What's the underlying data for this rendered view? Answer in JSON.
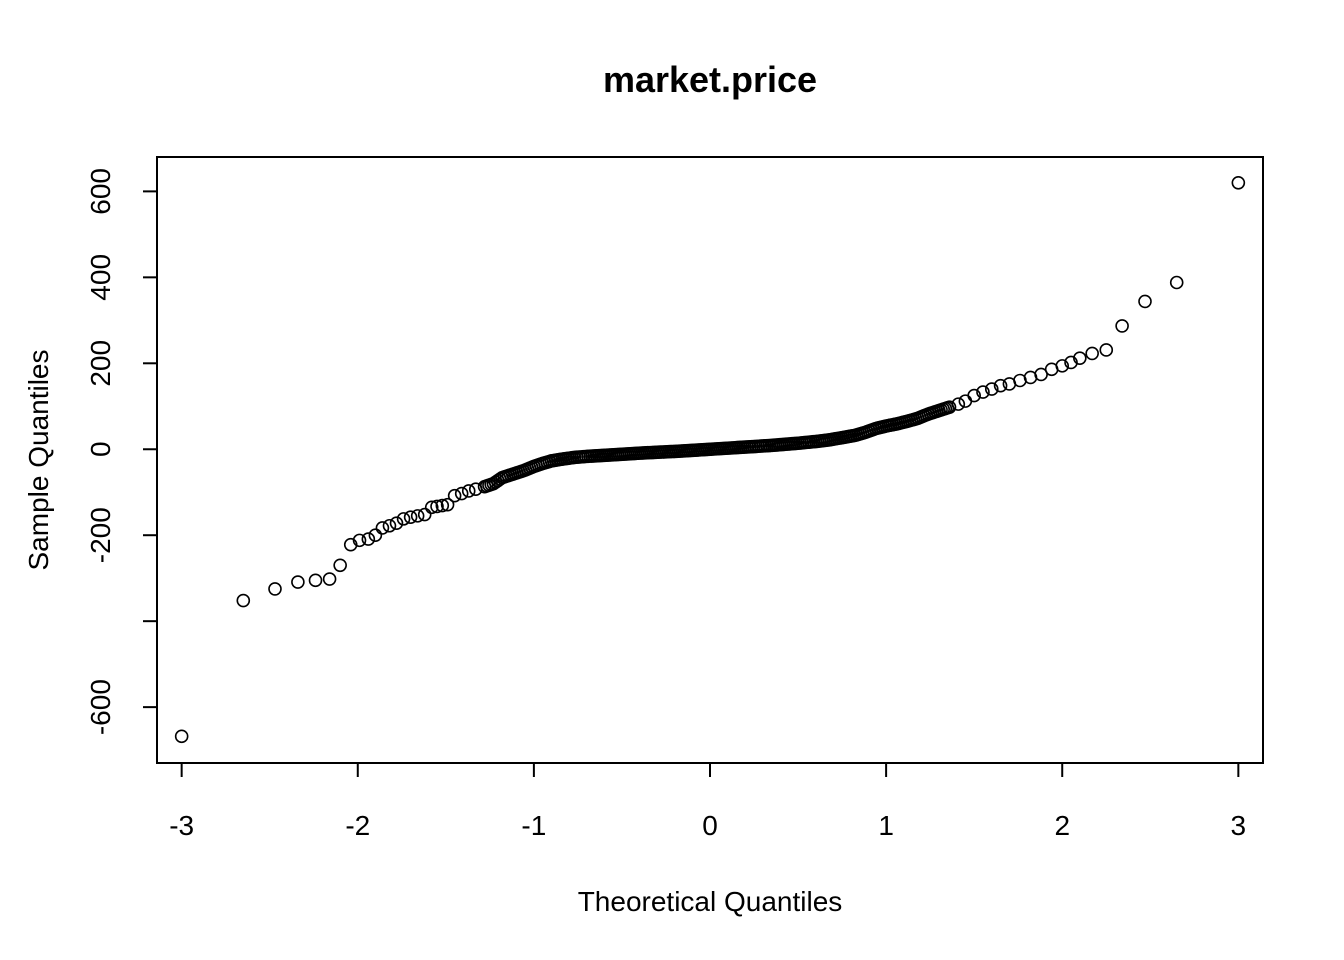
{
  "chart_data": {
    "type": "scatter",
    "title": "market.price",
    "xlabel": "Theoretical Quantiles",
    "ylabel": "Sample Quantiles",
    "xlim": [
      -3.14,
      3.14
    ],
    "ylim": [
      -730,
      680
    ],
    "x_ticks": [
      -3,
      -2,
      -1,
      0,
      1,
      2,
      3
    ],
    "x_tick_labels": [
      "-3",
      "-2",
      "-1",
      "0",
      "1",
      "2",
      "3"
    ],
    "y_ticks": [
      -600,
      -400,
      -200,
      0,
      200,
      400,
      600
    ],
    "y_tick_labels": [
      "-600",
      "",
      "-200",
      "0",
      "200",
      "400",
      "600"
    ],
    "grid": false,
    "marker": "open-circle",
    "series": [
      {
        "anchors": [
          [
            -3.0,
            -668
          ],
          [
            -2.65,
            -352
          ],
          [
            -2.47,
            -325
          ],
          [
            -2.34,
            -309
          ],
          [
            -2.24,
            -305
          ],
          [
            -2.16,
            -302
          ],
          [
            -2.1,
            -270
          ],
          [
            -2.04,
            -222
          ],
          [
            -1.99,
            -212
          ],
          [
            -1.94,
            -209
          ],
          [
            -1.9,
            -200
          ],
          [
            -1.86,
            -183
          ],
          [
            -1.82,
            -178
          ],
          [
            -1.78,
            -172
          ],
          [
            -1.74,
            -162
          ],
          [
            -1.7,
            -158
          ],
          [
            -1.66,
            -155
          ],
          [
            -1.62,
            -152
          ],
          [
            -1.58,
            -135
          ],
          [
            -1.55,
            -133
          ],
          [
            -1.52,
            -131
          ],
          [
            -1.49,
            -129
          ],
          [
            -1.45,
            -108
          ],
          [
            -1.41,
            -103
          ],
          [
            -1.37,
            -97
          ],
          [
            -1.33,
            -93
          ],
          [
            -1.28,
            -87
          ],
          [
            -1.23,
            -80
          ],
          [
            -1.18,
            -66
          ],
          [
            -1.12,
            -58
          ],
          [
            -1.06,
            -50
          ],
          [
            -1.0,
            -40
          ],
          [
            -0.95,
            -33
          ],
          [
            -0.9,
            -27
          ],
          [
            -0.84,
            -23
          ],
          [
            -0.77,
            -19
          ],
          [
            -0.68,
            -16
          ],
          [
            -0.55,
            -13
          ],
          [
            -0.4,
            -9
          ],
          [
            -0.2,
            -5
          ],
          [
            0.0,
            0
          ],
          [
            0.2,
            5
          ],
          [
            0.35,
            9
          ],
          [
            0.5,
            14
          ],
          [
            0.6,
            18
          ],
          [
            0.68,
            22
          ],
          [
            0.75,
            27
          ],
          [
            0.82,
            32
          ],
          [
            0.88,
            39
          ],
          [
            0.94,
            48
          ],
          [
            1.0,
            54
          ],
          [
            1.06,
            59
          ],
          [
            1.12,
            65
          ],
          [
            1.18,
            72
          ],
          [
            1.24,
            82
          ],
          [
            1.3,
            90
          ],
          [
            1.36,
            98
          ],
          [
            1.41,
            105
          ],
          [
            1.45,
            112
          ],
          [
            1.5,
            125
          ],
          [
            1.55,
            133
          ],
          [
            1.6,
            140
          ],
          [
            1.65,
            148
          ],
          [
            1.7,
            152
          ],
          [
            1.76,
            160
          ],
          [
            1.82,
            167
          ],
          [
            1.88,
            174
          ],
          [
            1.94,
            186
          ],
          [
            2.0,
            194
          ],
          [
            2.05,
            202
          ],
          [
            2.1,
            212
          ],
          [
            2.17,
            223
          ],
          [
            2.25,
            231
          ],
          [
            2.34,
            287
          ],
          [
            2.47,
            344
          ],
          [
            2.65,
            388
          ],
          [
            3.0,
            620
          ]
        ]
      }
    ]
  }
}
